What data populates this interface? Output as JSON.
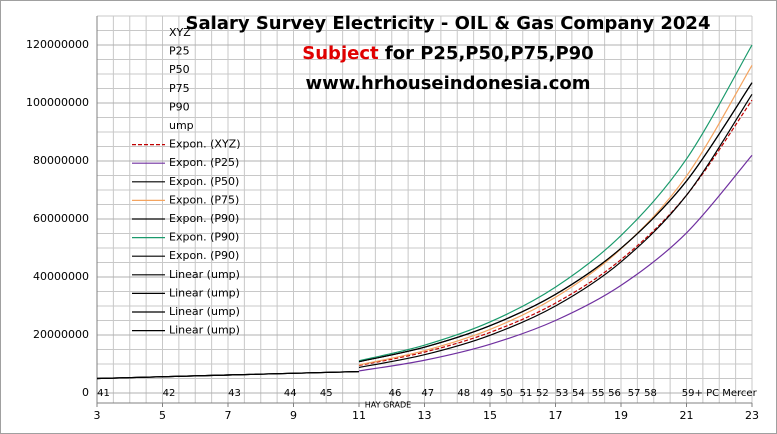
{
  "chart_data": {
    "type": "line",
    "title": "Salary Survey Electricity - OIL & Gas Company 2024",
    "subtitle_highlight": "Subject",
    "subtitle": "for P25,P50,P75,P90",
    "website": "www.hrhouseindonesia.com",
    "xlim": [
      3,
      23
    ],
    "xticks": [
      3,
      5,
      7,
      9,
      11,
      13,
      15,
      17,
      19,
      21,
      23
    ],
    "ylim": [
      0,
      130000000
    ],
    "yticks": [
      0,
      20000000,
      40000000,
      60000000,
      80000000,
      100000000,
      120000000
    ],
    "x_minor_step": 0.5,
    "y_minor_step": 5000000,
    "grid": true,
    "xlabel": "HAY GRADE",
    "grade_labels": [
      {
        "value": 3.2,
        "label": "41"
      },
      {
        "value": 5.2,
        "label": "42"
      },
      {
        "value": 7.2,
        "label": "43"
      },
      {
        "value": 8.9,
        "label": "44"
      },
      {
        "value": 10.0,
        "label": "45"
      },
      {
        "value": 12.1,
        "label": "46"
      },
      {
        "value": 13.1,
        "label": "47"
      },
      {
        "value": 14.2,
        "label": "48"
      },
      {
        "value": 14.9,
        "label": "49"
      },
      {
        "value": 15.5,
        "label": "50"
      },
      {
        "value": 16.1,
        "label": "51"
      },
      {
        "value": 16.6,
        "label": "52"
      },
      {
        "value": 17.2,
        "label": "53"
      },
      {
        "value": 17.7,
        "label": "54"
      },
      {
        "value": 18.3,
        "label": "55"
      },
      {
        "value": 18.8,
        "label": "56"
      },
      {
        "value": 19.4,
        "label": "57"
      },
      {
        "value": 19.9,
        "label": "58"
      },
      {
        "value": 22.0,
        "label": "59+ PC Mercer"
      }
    ],
    "legend_only": [
      "XYZ",
      "P25",
      "P50",
      "P75",
      "P90",
      "ump"
    ],
    "series": [
      {
        "name": "Expon. (XYZ)",
        "color": "#c00000",
        "dashed": true,
        "x": [
          11,
          13,
          15,
          17,
          19,
          21,
          23
        ],
        "values": [
          9500000,
          14100000,
          20900000,
          31000000,
          46000000,
          68200000,
          101000000
        ]
      },
      {
        "name": "Expon. (P25)",
        "color": "#7030a0",
        "x": [
          11,
          13,
          15,
          17,
          19,
          21,
          23
        ],
        "values": [
          7600000,
          11300000,
          16800000,
          25000000,
          37100000,
          55200000,
          82000000
        ]
      },
      {
        "name": "Expon. (P50)",
        "color": "#000000",
        "x": [
          11,
          13,
          15,
          17,
          19,
          21,
          23
        ],
        "values": [
          10800000,
          15800000,
          23200000,
          34000000,
          49900000,
          73100000,
          107000000
        ]
      },
      {
        "name": "Expon. (P75)",
        "color": "#f4a460",
        "x": [
          11,
          13,
          15,
          17,
          19,
          21,
          23
        ],
        "values": [
          9700000,
          14600000,
          21900000,
          33000000,
          49700000,
          74800000,
          113000000
        ]
      },
      {
        "name": "Expon. (P90)",
        "color": "#000000",
        "x": [
          11,
          13,
          15,
          17,
          19,
          21,
          23
        ],
        "values": [
          8800000,
          13200000,
          19900000,
          30000000,
          45200000,
          68200000,
          103000000
        ]
      },
      {
        "name": "Expon. (P90)",
        "color": "#1a9a6c",
        "x": [
          11,
          13,
          15,
          17,
          19,
          21,
          23
        ],
        "values": [
          11100000,
          16500000,
          24500000,
          36500000,
          54300000,
          80700000,
          120000000
        ]
      },
      {
        "name": "Expon. (P90)",
        "color": "#000000",
        "x": [
          11,
          13,
          15,
          17,
          19,
          21,
          23
        ],
        "values": [
          10800000,
          15800000,
          23200000,
          34000000,
          49900000,
          73100000,
          107000000
        ]
      },
      {
        "name": "Linear (ump)",
        "color": "#000000",
        "x": [
          3,
          11
        ],
        "values": [
          5000000,
          7400000
        ]
      },
      {
        "name": "Linear (ump)",
        "color": "#000000",
        "x": [
          3,
          11
        ],
        "values": [
          5000000,
          7400000
        ]
      },
      {
        "name": "Linear (ump)",
        "color": "#000000",
        "x": [
          3,
          11
        ],
        "values": [
          5000000,
          7400000
        ]
      },
      {
        "name": "Linear (ump)",
        "color": "#000000",
        "x": [
          3,
          11
        ],
        "values": [
          5000000,
          7400000
        ]
      }
    ]
  }
}
